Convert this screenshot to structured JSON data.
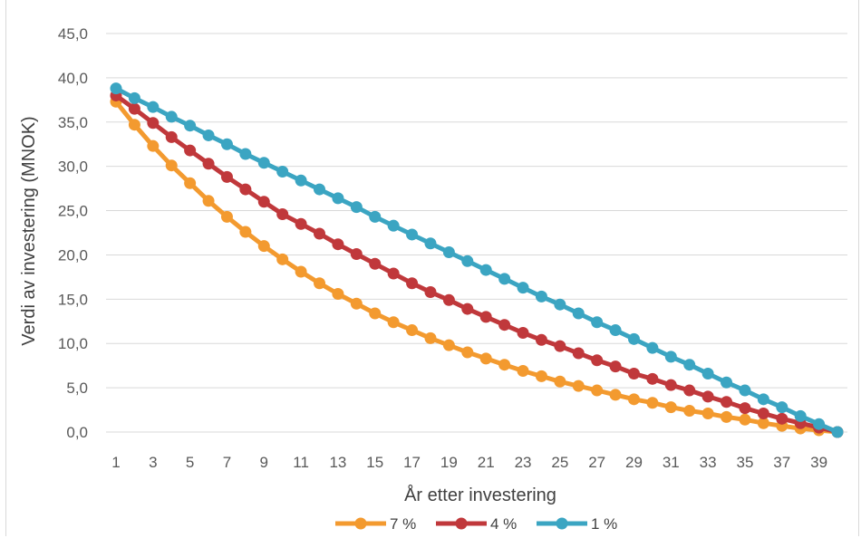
{
  "chart_data": {
    "type": "line",
    "title": "",
    "xlabel": "År etter investering",
    "ylabel": "Verdi av investering (MNOK)",
    "ylim": [
      0,
      45
    ],
    "yticks": [
      "0,0",
      "5,0",
      "10,0",
      "15,0",
      "20,0",
      "25,0",
      "30,0",
      "35,0",
      "40,0",
      "45,0"
    ],
    "xticks": [
      "1",
      "3",
      "5",
      "7",
      "9",
      "11",
      "13",
      "15",
      "17",
      "19",
      "21",
      "23",
      "25",
      "27",
      "29",
      "31",
      "33",
      "35",
      "37",
      "39"
    ],
    "x": [
      1,
      2,
      3,
      4,
      5,
      6,
      7,
      8,
      9,
      10,
      11,
      12,
      13,
      14,
      15,
      16,
      17,
      18,
      19,
      20,
      21,
      22,
      23,
      24,
      25,
      26,
      27,
      28,
      29,
      30,
      31,
      32,
      33,
      34,
      35,
      36,
      37,
      38,
      39,
      40
    ],
    "grid": true,
    "legend_position": "bottom",
    "series": [
      {
        "name": "7 %",
        "color": "#f39a2f",
        "values": [
          37.3,
          34.7,
          32.3,
          30.1,
          28.1,
          26.1,
          24.3,
          22.6,
          21.0,
          19.5,
          18.1,
          16.8,
          15.6,
          14.5,
          13.4,
          12.4,
          11.5,
          10.6,
          9.8,
          9.0,
          8.3,
          7.6,
          6.9,
          6.3,
          5.7,
          5.2,
          4.7,
          4.2,
          3.7,
          3.3,
          2.8,
          2.4,
          2.1,
          1.7,
          1.4,
          1.0,
          0.7,
          0.4,
          0.2,
          0.0
        ]
      },
      {
        "name": "4 %",
        "color": "#c0383b",
        "values": [
          38.0,
          36.5,
          34.9,
          33.3,
          31.8,
          30.3,
          28.8,
          27.4,
          26.0,
          24.6,
          23.5,
          22.4,
          21.2,
          20.1,
          19.0,
          17.9,
          16.8,
          15.8,
          14.9,
          13.9,
          13.0,
          12.1,
          11.2,
          10.4,
          9.7,
          8.9,
          8.1,
          7.4,
          6.6,
          6.0,
          5.3,
          4.7,
          4.0,
          3.4,
          2.7,
          2.1,
          1.5,
          1.0,
          0.5,
          0.0
        ]
      },
      {
        "name": "1 %",
        "color": "#3ba5c2",
        "values": [
          38.8,
          37.7,
          36.7,
          35.6,
          34.6,
          33.5,
          32.5,
          31.4,
          30.4,
          29.4,
          28.4,
          27.4,
          26.4,
          25.4,
          24.3,
          23.3,
          22.3,
          21.3,
          20.3,
          19.3,
          18.3,
          17.3,
          16.3,
          15.3,
          14.4,
          13.4,
          12.4,
          11.5,
          10.5,
          9.5,
          8.5,
          7.6,
          6.6,
          5.6,
          4.7,
          3.7,
          2.8,
          1.8,
          0.9,
          0.0
        ]
      }
    ]
  }
}
